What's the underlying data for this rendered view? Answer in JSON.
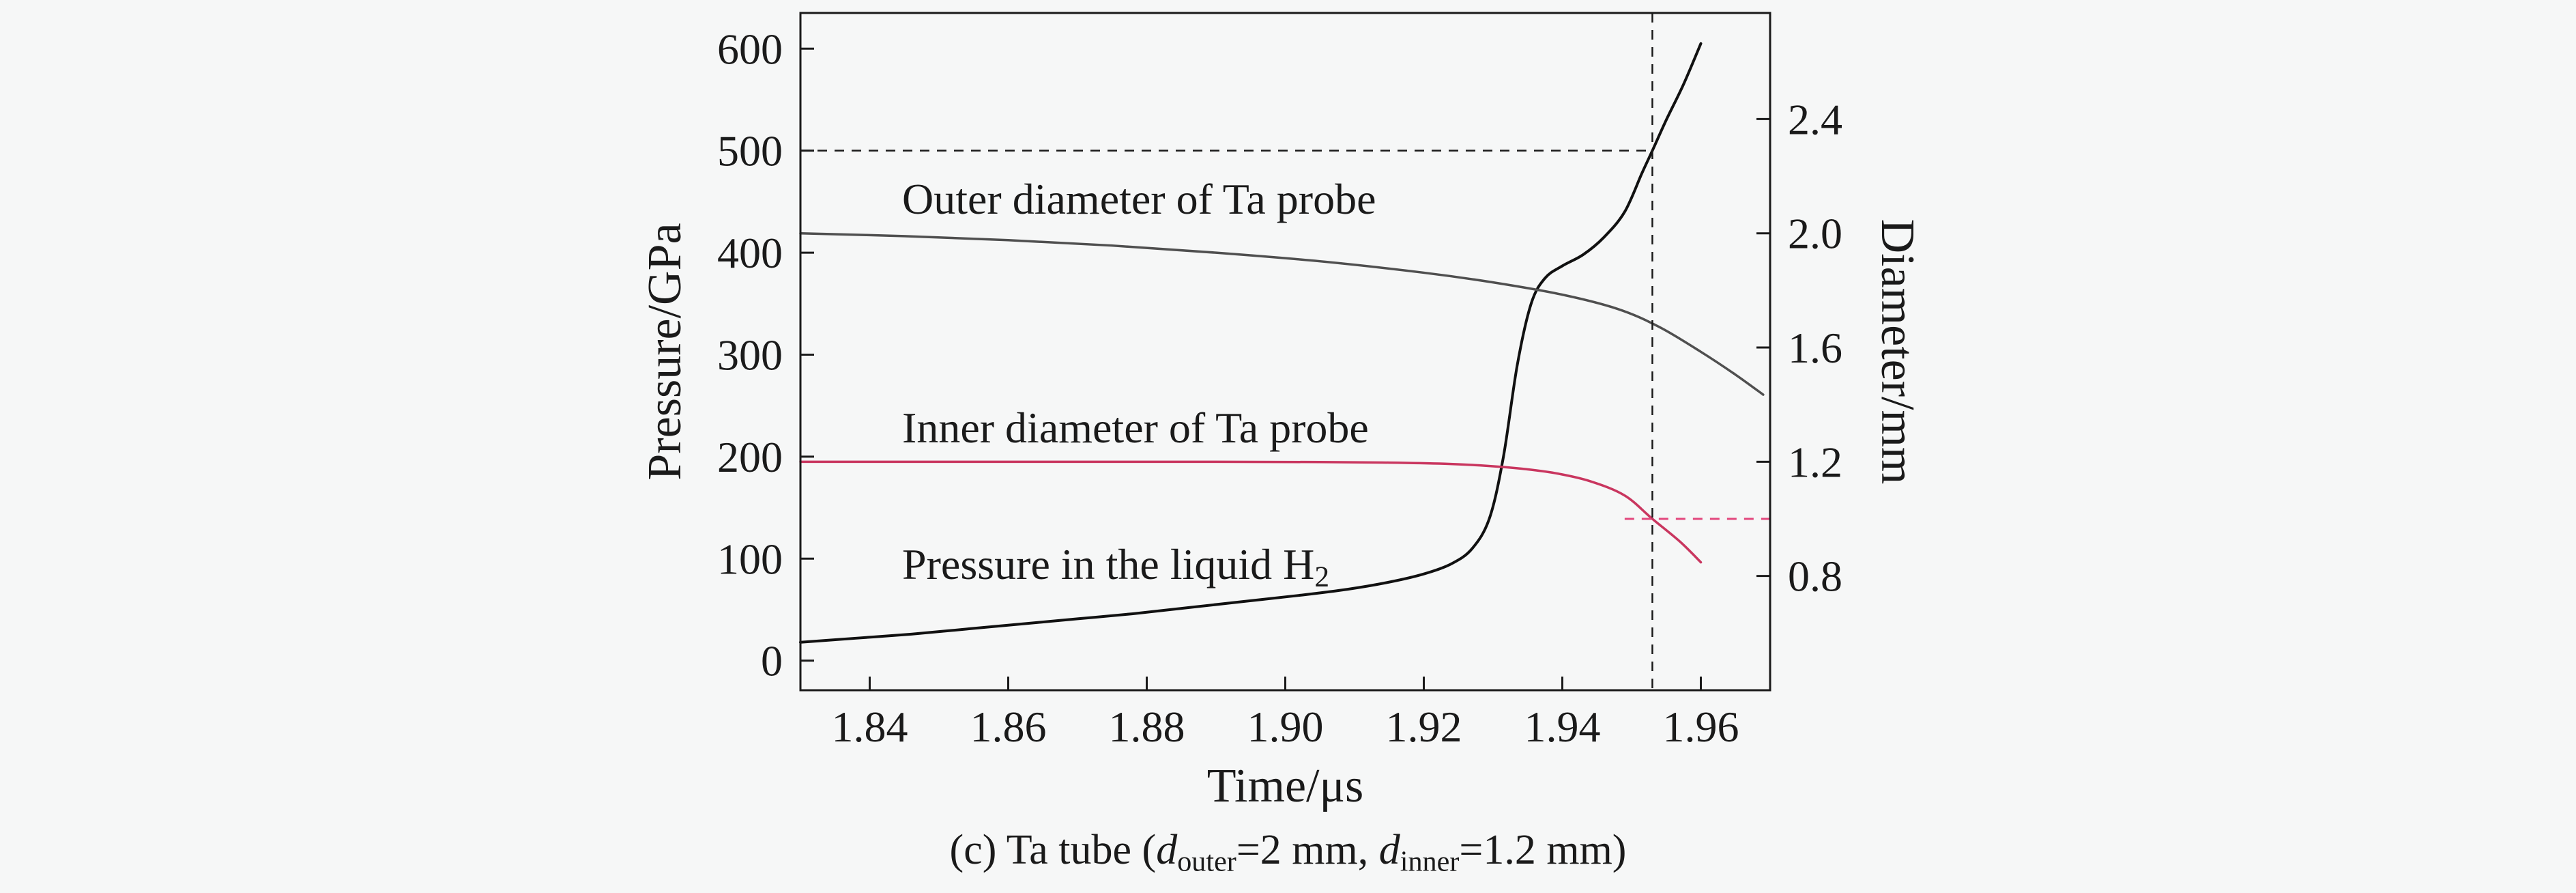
{
  "page": {
    "background": "#f6f7f7",
    "text_color": "#1a1a1a"
  },
  "chart_data": {
    "type": "line",
    "title": "",
    "xlabel": "Time/μs",
    "ylabel_left": "Pressure/GPa",
    "ylabel_right": "Diameter/mm",
    "xlim": [
      1.83,
      1.97
    ],
    "ylim_left": [
      -29,
      635
    ],
    "x_ticks": [
      1.84,
      1.86,
      1.88,
      1.9,
      1.92,
      1.94,
      1.96
    ],
    "x_tick_labels": [
      "1.84",
      "1.86",
      "1.88",
      "1.90",
      "1.92",
      "1.94",
      "1.96"
    ],
    "y_ticks_left": [
      0,
      100,
      200,
      300,
      400,
      500,
      600
    ],
    "y_tick_labels_left": [
      "0",
      "100",
      "200",
      "300",
      "400",
      "500",
      "600"
    ],
    "y_ticks_right": [
      0.8,
      1.2,
      1.6,
      2.0,
      2.4
    ],
    "y_tick_labels_right": [
      "0.8",
      "1.2",
      "1.6",
      "2.0",
      "2.4"
    ],
    "right_to_left": {
      "scale": 280,
      "offset": -141
    },
    "grid": false,
    "axis_color": "#1a1a1a",
    "series": [
      {
        "name": "Pressure in the liquid H2",
        "slug": "pressure-liquid-h2",
        "axis": "left",
        "color": "#111111",
        "width": 4,
        "x": [
          1.83,
          1.838,
          1.846,
          1.854,
          1.862,
          1.87,
          1.878,
          1.886,
          1.894,
          1.902,
          1.909,
          1.915,
          1.92,
          1.924,
          1.927,
          1.9295,
          1.9315,
          1.9335,
          1.9355,
          1.9375,
          1.94,
          1.943,
          1.946,
          1.949,
          1.9515,
          1.953,
          1.955,
          1.9575,
          1.96
        ],
        "y": [
          18,
          22,
          26,
          31,
          36,
          41,
          46,
          52,
          58,
          64,
          70,
          77,
          85,
          95,
          110,
          140,
          200,
          290,
          350,
          375,
          387,
          398,
          415,
          440,
          478,
          500,
          530,
          565,
          605
        ]
      },
      {
        "name": "Outer diameter of Ta probe",
        "slug": "outer-diameter",
        "axis": "right",
        "color": "#4f4f4f",
        "width": 3.5,
        "x": [
          1.83,
          1.845,
          1.86,
          1.875,
          1.89,
          1.905,
          1.92,
          1.93,
          1.94,
          1.948,
          1.954,
          1.96,
          1.965,
          1.969
        ],
        "y": [
          2.0,
          1.99,
          1.976,
          1.957,
          1.932,
          1.902,
          1.862,
          1.828,
          1.785,
          1.735,
          1.672,
          1.585,
          1.505,
          1.435
        ]
      },
      {
        "name": "Inner diameter of Ta probe",
        "slug": "inner-diameter",
        "axis": "right",
        "color": "#c9365f",
        "width": 3.5,
        "x": [
          1.83,
          1.85,
          1.87,
          1.89,
          1.905,
          1.915,
          1.923,
          1.929,
          1.934,
          1.939,
          1.944,
          1.949,
          1.953,
          1.957,
          1.96
        ],
        "y": [
          1.2,
          1.2,
          1.2,
          1.2,
          1.199,
          1.197,
          1.193,
          1.186,
          1.176,
          1.16,
          1.132,
          1.082,
          1.0,
          0.92,
          0.848
        ]
      }
    ],
    "annotations": {
      "vline": {
        "x": 1.953,
        "color": "#1a1a1a",
        "style": "dashed"
      },
      "hline_pressure": {
        "y": 500,
        "x_end": 1.953,
        "color": "#1a1a1a",
        "style": "dashed"
      },
      "hline_diameter": {
        "y": 1.0,
        "x_start": 1.949,
        "color": "#e3487e",
        "style": "dashed"
      },
      "labels": [
        {
          "text": "Outer diameter of Ta probe",
          "sub": ""
        },
        {
          "text": "Inner diameter of Ta probe",
          "sub": ""
        },
        {
          "text": "Pressure in the liquid H",
          "sub": "2"
        }
      ]
    },
    "caption": {
      "prefix": "(c) Ta tube (",
      "d1": "d",
      "sub1": "outer",
      "mid": "=2 mm, ",
      "d2": "d",
      "sub2": "inner",
      "suffix": "=1.2 mm)"
    }
  }
}
